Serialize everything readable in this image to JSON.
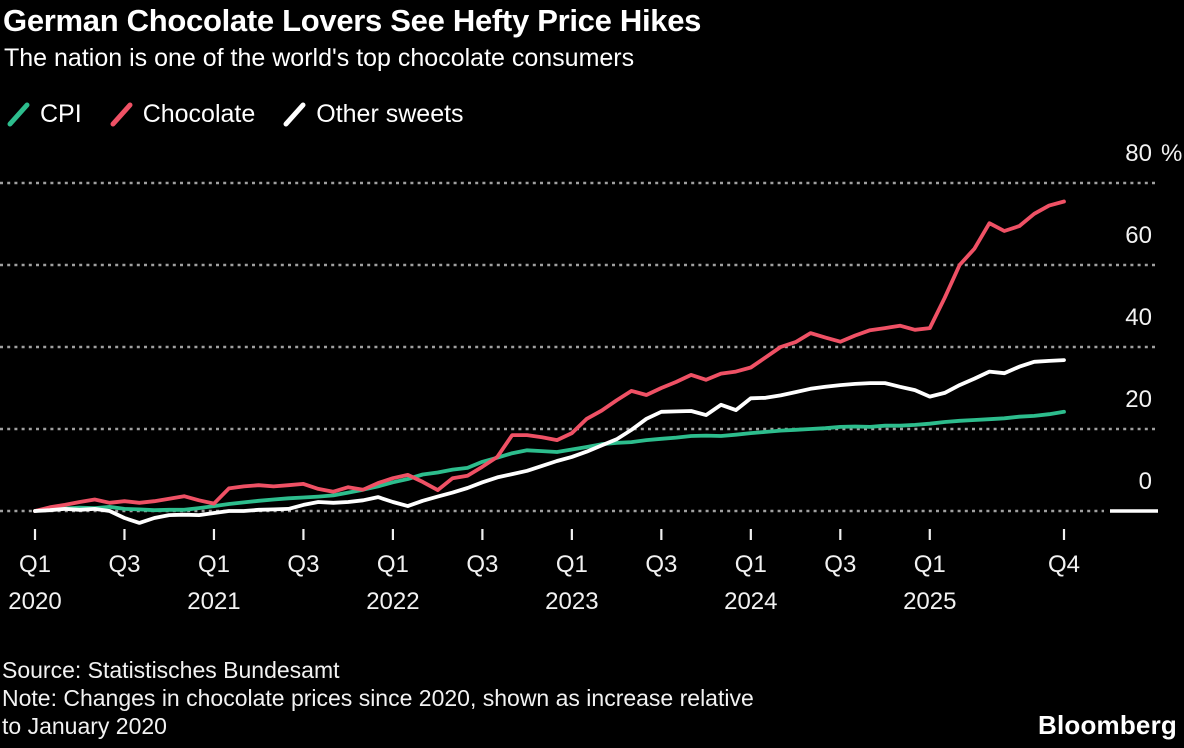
{
  "header": {
    "title": "German Chocolate Lovers See Hefty Price Hikes",
    "subtitle": "The nation is one of the world's top chocolate consumers"
  },
  "footer": {
    "source": "Source: Statistisches Bundesamt",
    "note_lines": [
      "Note: Changes in chocolate prices since 2020, shown as increase relative",
      "to January 2020"
    ],
    "brand": "Bloomberg"
  },
  "colors": {
    "background": "#000000",
    "cpi": "#2dbd8d",
    "chocolate": "#ef5165",
    "other_sweets": "#ffffff",
    "gridline": "#a0a0a0"
  },
  "chart_data": {
    "type": "line",
    "title": "German Chocolate Lovers See Hefty Price Hikes",
    "subtitle": "The nation is one of the world's top chocolate consumers",
    "unit": "%",
    "x_start": "2020-01",
    "x_end": "2025-10",
    "x_step": "month",
    "grid": "horizontal-dashed",
    "legend_position": "top-left",
    "ylim": [
      -5,
      84
    ],
    "y_axis": {
      "ticks": [
        {
          "value": 0,
          "label": "0"
        },
        {
          "value": 20,
          "label": "20"
        },
        {
          "value": 40,
          "label": "40"
        },
        {
          "value": 60,
          "label": "60"
        },
        {
          "value": 80,
          "label": "80",
          "suffix": "%"
        }
      ]
    },
    "x_axis": {
      "ticks": [
        {
          "month_index": 0,
          "label": "Q1",
          "year": "2020"
        },
        {
          "month_index": 6,
          "label": "Q3"
        },
        {
          "month_index": 12,
          "label": "Q1",
          "year": "2021"
        },
        {
          "month_index": 18,
          "label": "Q3"
        },
        {
          "month_index": 24,
          "label": "Q1",
          "year": "2022"
        },
        {
          "month_index": 30,
          "label": "Q3"
        },
        {
          "month_index": 36,
          "label": "Q1",
          "year": "2023"
        },
        {
          "month_index": 42,
          "label": "Q3"
        },
        {
          "month_index": 48,
          "label": "Q1",
          "year": "2024"
        },
        {
          "month_index": 54,
          "label": "Q3"
        },
        {
          "month_index": 60,
          "label": "Q1",
          "year": "2025"
        },
        {
          "month_index": 69,
          "label": "Q4"
        }
      ]
    },
    "series": [
      {
        "name": "CPI",
        "color": "#2dbd8d",
        "values": [
          0,
          0.4,
          0.6,
          0.8,
          0.7,
          1.0,
          0.5,
          0.4,
          0.2,
          0.3,
          0.3,
          0.7,
          1.2,
          1.7,
          2.1,
          2.5,
          2.8,
          3.1,
          3.3,
          3.5,
          3.8,
          4.5,
          5.2,
          6.0,
          7.0,
          7.8,
          8.9,
          9.4,
          10.1,
          10.5,
          12.0,
          13.0,
          14.1,
          14.8,
          14.6,
          14.4,
          15.0,
          15.6,
          16.3,
          16.6,
          16.8,
          17.3,
          17.6,
          17.9,
          18.3,
          18.4,
          18.3,
          18.6,
          19.0,
          19.3,
          19.6,
          19.8,
          20.0,
          20.2,
          20.5,
          20.6,
          20.5,
          20.8,
          20.8,
          21.0,
          21.3,
          21.7,
          22.0,
          22.2,
          22.4,
          22.6,
          23.0,
          23.2,
          23.6,
          24.2
        ]
      },
      {
        "name": "Chocolate",
        "color": "#ef5165",
        "values": [
          0,
          0.9,
          1.5,
          2.2,
          2.8,
          2.0,
          2.4,
          2.0,
          2.4,
          3.0,
          3.6,
          2.6,
          1.8,
          5.5,
          6.0,
          6.3,
          6.0,
          6.3,
          6.6,
          5.4,
          4.7,
          5.8,
          5.2,
          6.8,
          8.0,
          8.8,
          7.1,
          5.1,
          8.0,
          8.6,
          10.8,
          13.2,
          18.5,
          18.5,
          18.0,
          17.3,
          19.0,
          22.5,
          24.5,
          27.0,
          29.3,
          28.3,
          30.0,
          31.5,
          33.2,
          32.0,
          33.5,
          34.0,
          35.0,
          37.5,
          40.0,
          41.2,
          43.4,
          42.3,
          41.3,
          42.8,
          44.1,
          44.6,
          45.2,
          44.2,
          44.6,
          52.0,
          60.0,
          64.0,
          70.2,
          68.3,
          69.5,
          72.5,
          74.5,
          75.5
        ]
      },
      {
        "name": "Other sweets",
        "color": "#ffffff",
        "values": [
          0,
          0.2,
          0.5,
          0.3,
          0.5,
          0,
          -1.7,
          -2.9,
          -1.7,
          -1.0,
          -0.9,
          -1.0,
          -0.5,
          0,
          0,
          0.3,
          0.4,
          0.5,
          1.5,
          2.2,
          2.0,
          2.2,
          2.6,
          3.4,
          2.2,
          1.2,
          2.5,
          3.5,
          4.5,
          5.6,
          7.0,
          8.2,
          9.0,
          9.8,
          11.0,
          12.2,
          13.2,
          14.5,
          16.0,
          17.5,
          19.8,
          22.5,
          24.2,
          24.3,
          24.4,
          23.4,
          25.9,
          24.6,
          27.5,
          27.6,
          28.2,
          29.0,
          29.8,
          30.3,
          30.7,
          31.0,
          31.2,
          31.2,
          30.3,
          29.5,
          27.9,
          28.8,
          30.7,
          32.3,
          34.0,
          33.6,
          35.2,
          36.4,
          36.6,
          36.8
        ]
      }
    ]
  }
}
